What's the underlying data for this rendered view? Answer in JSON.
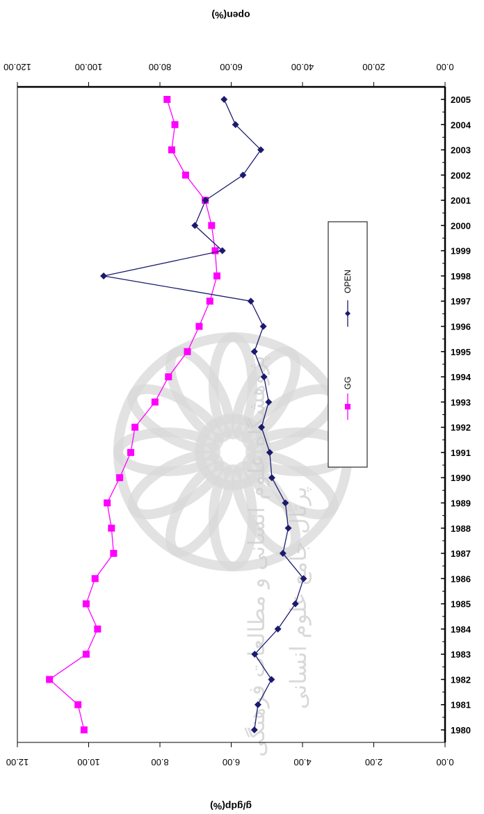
{
  "chart_data": {
    "type": "line",
    "orientation": "rotated-90",
    "categories": [
      "1980",
      "1981",
      "1982",
      "1983",
      "1984",
      "1985",
      "1986",
      "1987",
      "1988",
      "1989",
      "1990",
      "1991",
      "1992",
      "1993",
      "1994",
      "1995",
      "1996",
      "1997",
      "1998",
      "1999",
      "2000",
      "2001",
      "2002",
      "2003",
      "2004",
      "2005"
    ],
    "left_axis": {
      "label": "g/gdp(%)",
      "range": [
        0,
        12
      ],
      "ticks": [
        "0.00",
        "2.00",
        "4.00",
        "6.00",
        "8.00",
        "10.00",
        "12.00"
      ]
    },
    "right_axis": {
      "label": "open(%)",
      "range": [
        0,
        120
      ],
      "ticks": [
        "0.00",
        "20.00",
        "40.00",
        "60.00",
        "80.00",
        "100.00",
        "120.00"
      ]
    },
    "series": [
      {
        "name": "GG",
        "axis": "left",
        "color": "#ff00ff",
        "marker": "square",
        "values": [
          10.13,
          10.3,
          11.1,
          10.07,
          9.75,
          10.07,
          9.82,
          9.3,
          9.36,
          9.48,
          9.13,
          8.82,
          8.7,
          8.14,
          7.76,
          7.23,
          6.9,
          6.6,
          6.4,
          6.45,
          6.55,
          6.73,
          7.28,
          7.67,
          7.58,
          7.8
        ]
      },
      {
        "name": "OPEN",
        "axis": "right",
        "color": "#1a1a6e",
        "marker": "diamond",
        "values": [
          53.5,
          52.5,
          48.7,
          53.4,
          46.9,
          42.0,
          39.7,
          45.5,
          44.0,
          44.8,
          48.6,
          49.2,
          51.5,
          49.5,
          50.8,
          53.5,
          51.0,
          54.5,
          95.8,
          62.5,
          70.2,
          67.2,
          56.7,
          51.7,
          58.8,
          62.0
        ]
      }
    ],
    "legend": {
      "placement": "right",
      "entries": [
        "GG",
        "OPEN"
      ]
    }
  },
  "watermark": {
    "line1": "پژوهشگاه علوم انسانی و مطالعات فرهنگی",
    "line2": "پرتال جامع علوم انسانی"
  }
}
